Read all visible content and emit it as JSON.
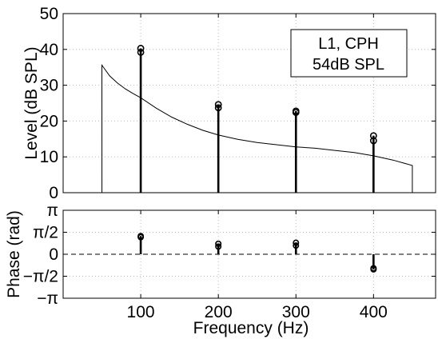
{
  "chart_data": [
    {
      "type": "stem",
      "panel": "level",
      "ylabel": "Level (dB SPL)",
      "xlim": [
        0,
        480
      ],
      "ylim": [
        0,
        50
      ],
      "yticks": [
        0,
        10,
        20,
        30,
        40,
        50
      ],
      "ytick_labels": [
        "0",
        "10",
        "20",
        "30",
        "40",
        "50"
      ],
      "xticks": [
        100,
        200,
        300,
        400
      ],
      "grid": true,
      "legend": {
        "placement": "top-right",
        "lines": [
          "L1, CPH",
          "54dB SPL"
        ]
      },
      "stems": [
        {
          "x": 100,
          "values": [
            40.3,
            39.2
          ]
        },
        {
          "x": 200,
          "values": [
            24.6,
            23.7
          ]
        },
        {
          "x": 300,
          "values": [
            22.8,
            22.4
          ]
        },
        {
          "x": 400,
          "values": [
            15.9,
            14.5
          ]
        }
      ],
      "curve": {
        "x": [
          50,
          60,
          70,
          80,
          90,
          100,
          120,
          140,
          160,
          180,
          200,
          225,
          250,
          275,
          300,
          325,
          350,
          375,
          400,
          425,
          450
        ],
        "y": [
          35.6,
          32.6,
          30.6,
          29.0,
          27.7,
          26.5,
          23.6,
          21.1,
          19.1,
          17.4,
          16.1,
          14.9,
          14.0,
          13.4,
          12.8,
          12.4,
          11.8,
          11.2,
          10.3,
          9.1,
          7.6
        ],
        "edges": "vertical drop to 0 at both ends"
      }
    },
    {
      "type": "stem",
      "panel": "phase",
      "ylabel": "Phase (rad)",
      "xlabel": "Frequency (Hz)",
      "xlim": [
        0,
        480
      ],
      "ylim": [
        -3.1416,
        3.1416
      ],
      "yticks": [
        -3.1416,
        -1.5708,
        0,
        1.5708,
        3.1416
      ],
      "ytick_labels": [
        "−π",
        "−π/2",
        "0",
        "π/2",
        "π"
      ],
      "xticks": [
        100,
        200,
        300,
        400
      ],
      "xtick_labels": [
        "100",
        "200",
        "300",
        "400"
      ],
      "grid": true,
      "reference_line": {
        "y": 0,
        "style": "dashed"
      },
      "stems": [
        {
          "x": 100,
          "values": [
            1.3,
            1.22
          ]
        },
        {
          "x": 200,
          "values": [
            0.75,
            0.55
          ]
        },
        {
          "x": 300,
          "values": [
            0.82,
            0.62
          ]
        },
        {
          "x": 400,
          "values": [
            -1.0,
            -1.08
          ]
        }
      ]
    }
  ]
}
